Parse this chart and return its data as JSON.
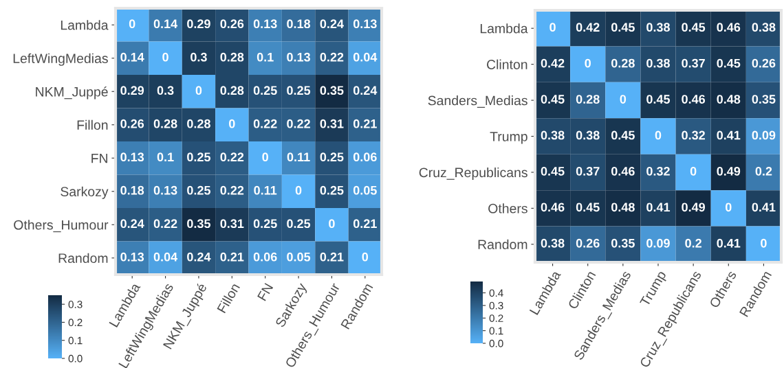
{
  "chart_data": [
    {
      "type": "heatmap",
      "categories": [
        "Lambda",
        "LeftWingMedias",
        "NKM_Juppé",
        "Fillon",
        "FN",
        "Sarkozy",
        "Others_Humour",
        "Random"
      ],
      "y_categories": [
        "Lambda",
        "LeftWingMedias",
        "NKM_Juppé",
        "Fillon",
        "FN",
        "Sarkozy",
        "Others_Humour",
        "Random"
      ],
      "cells": [
        [
          0,
          0.14,
          0.29,
          0.26,
          0.13,
          0.18,
          0.24,
          0.13
        ],
        [
          0.14,
          0,
          0.3,
          0.28,
          0.1,
          0.13,
          0.22,
          0.04
        ],
        [
          0.29,
          0.3,
          0,
          0.28,
          0.25,
          0.25,
          0.35,
          0.24
        ],
        [
          0.26,
          0.28,
          0.28,
          0,
          0.22,
          0.22,
          0.31,
          0.21
        ],
        [
          0.13,
          0.1,
          0.25,
          0.22,
          0,
          0.11,
          0.25,
          0.06
        ],
        [
          0.18,
          0.13,
          0.25,
          0.22,
          0.11,
          0,
          0.25,
          0.05
        ],
        [
          0.24,
          0.22,
          0.35,
          0.31,
          0.25,
          0.25,
          0,
          0.21
        ],
        [
          0.13,
          0.04,
          0.24,
          0.21,
          0.06,
          0.05,
          0.21,
          0
        ]
      ],
      "colors": [
        "#56b1f7",
        "#132b43"
      ],
      "clim": [
        0,
        0.35
      ],
      "cticks": [
        {
          "value": 0,
          "label": "0.0"
        },
        {
          "value": 0.1,
          "label": "0.1"
        },
        {
          "value": 0.2,
          "label": "0.2"
        },
        {
          "value": 0.3,
          "label": "0.3"
        }
      ],
      "data_labels": true
    },
    {
      "type": "heatmap",
      "categories": [
        "Lambda",
        "Clinton",
        "Sanders_Medias",
        "Trump",
        "Cruz_Republicans",
        "Others",
        "Random"
      ],
      "y_categories": [
        "Lambda",
        "Clinton",
        "Sanders_Medias",
        "Trump",
        "Cruz_Republicans",
        "Others",
        "Random"
      ],
      "cells": [
        [
          0,
          0.42,
          0.45,
          0.38,
          0.45,
          0.46,
          0.38
        ],
        [
          0.42,
          0,
          0.28,
          0.38,
          0.37,
          0.45,
          0.26
        ],
        [
          0.45,
          0.28,
          0,
          0.45,
          0.46,
          0.48,
          0.35
        ],
        [
          0.38,
          0.38,
          0.45,
          0,
          0.32,
          0.41,
          0.09
        ],
        [
          0.45,
          0.37,
          0.46,
          0.32,
          0,
          0.49,
          0.2
        ],
        [
          0.46,
          0.45,
          0.48,
          0.41,
          0.49,
          0,
          0.41
        ],
        [
          0.38,
          0.26,
          0.35,
          0.09,
          0.2,
          0.41,
          0
        ]
      ],
      "colors": [
        "#56b1f7",
        "#132b43"
      ],
      "clim": [
        0,
        0.49
      ],
      "cticks": [
        {
          "value": 0,
          "label": "0.0"
        },
        {
          "value": 0.1,
          "label": "0.1"
        },
        {
          "value": 0.2,
          "label": "0.2"
        },
        {
          "value": 0.3,
          "label": "0.3"
        },
        {
          "value": 0.4,
          "label": "0.4"
        }
      ],
      "data_labels": true
    }
  ]
}
